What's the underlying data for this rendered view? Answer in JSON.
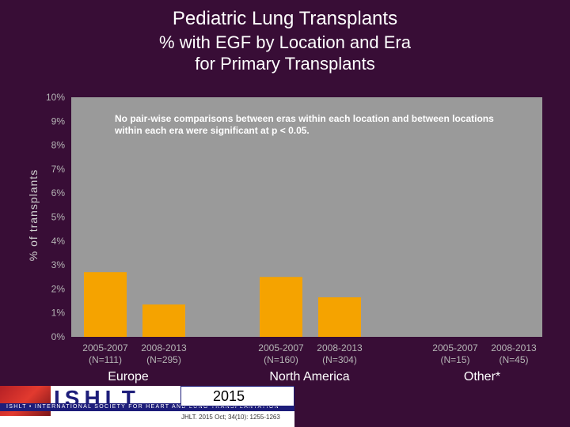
{
  "title": "Pediatric Lung Transplants",
  "subtitle_line1": "% with EGF by Location and Era",
  "subtitle_line2": "for Primary Transplants",
  "note": "No pair-wise comparisons between eras within each location and between locations within each era were significant at p < 0.05.",
  "footer": {
    "logo_text": "ISHLT",
    "society_name": "ISHLT • INTERNATIONAL SOCIETY FOR HEART AND LUNG TRANSPLANTATION",
    "year": "2015",
    "citation": "JHLT. 2015 Oct; 34(10): 1255-1263"
  },
  "colors": {
    "background": "#380d36",
    "plot_background": "#9a9a9a",
    "bar": "#f5a300"
  },
  "chart_data": {
    "type": "bar",
    "title": "Pediatric Lung Transplants",
    "ylabel": "% of transplants",
    "ylim": [
      0,
      10
    ],
    "yticks": [
      "0%",
      "1%",
      "2%",
      "3%",
      "4%",
      "5%",
      "6%",
      "7%",
      "8%",
      "9%",
      "10%"
    ],
    "grid": false,
    "groups": [
      {
        "location": "Europe",
        "bars": [
          {
            "era": "2005-2007",
            "n": "(N=111)",
            "value": 2.7
          },
          {
            "era": "2008-2013",
            "n": "(N=295)",
            "value": 1.35
          }
        ]
      },
      {
        "location": "North America",
        "bars": [
          {
            "era": "2005-2007",
            "n": "(N=160)",
            "value": 2.5
          },
          {
            "era": "2008-2013",
            "n": "(N=304)",
            "value": 1.65
          }
        ]
      },
      {
        "location": "Other*",
        "bars": [
          {
            "era": "2005-2007",
            "n": "(N=15)",
            "value": 0
          },
          {
            "era": "2008-2013",
            "n": "(N=45)",
            "value": 0
          }
        ]
      }
    ]
  }
}
